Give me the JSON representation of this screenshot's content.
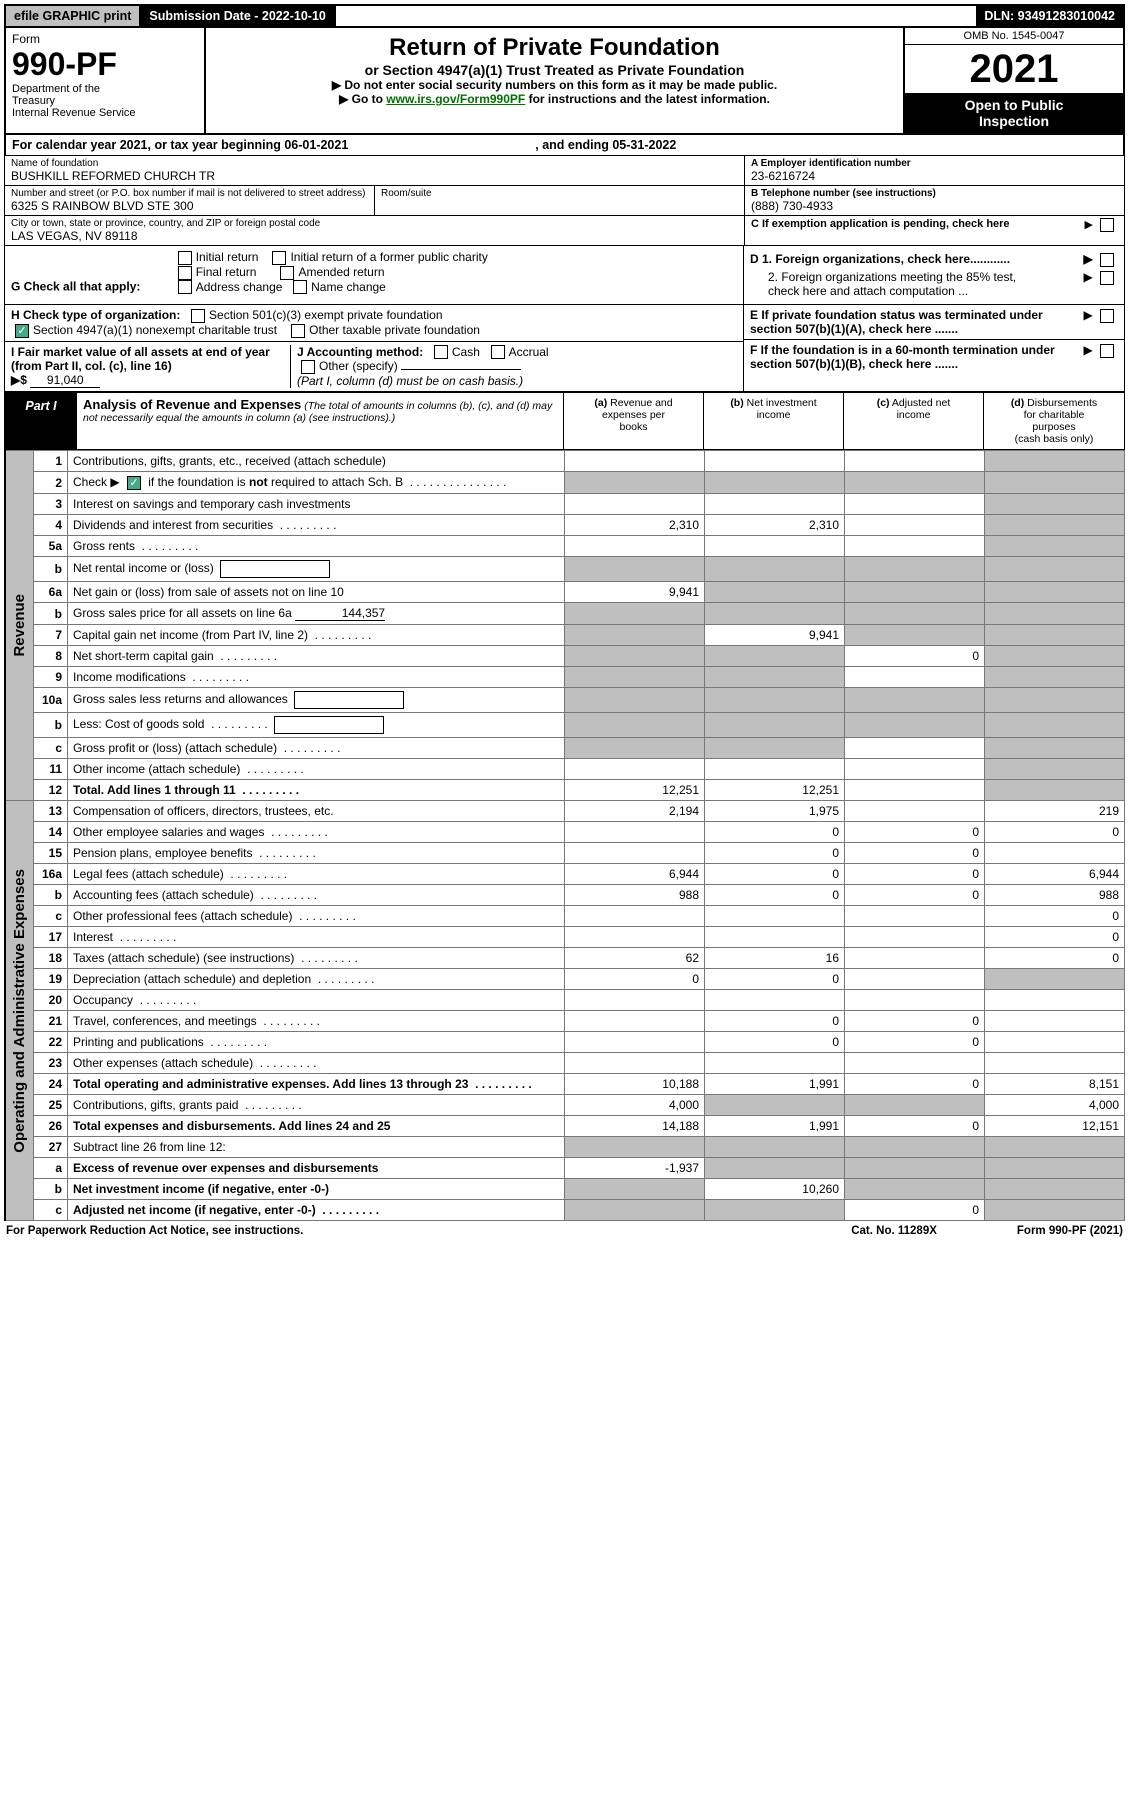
{
  "topbar": {
    "efile": "efile GRAPHIC print",
    "submission_label": "Submission Date - ",
    "submission_date": "2022-10-10",
    "dln_label": "DLN: ",
    "dln": "93491283010042"
  },
  "title": {
    "form_word": "Form",
    "form_no": "990-PF",
    "dept": "Department of the Treasury\nInternal Revenue Service",
    "main": "Return of Private Foundation",
    "sub1": "or Section 4947(a)(1) Trust Treated as Private Foundation",
    "sub2a": "▶ Do not enter social security numbers on this form as it may be made public.",
    "sub2b_pre": "▶ Go to ",
    "sub2b_link": "www.irs.gov/Form990PF",
    "sub2b_post": " for instructions and the latest information.",
    "omb": "OMB No. 1545-0047",
    "year": "2021",
    "open": "Open to Public Inspection"
  },
  "calyear": {
    "pre": "For calendar year 2021, or tax year beginning ",
    "begin": "06-01-2021",
    "mid": " , and ending ",
    "end": "05-31-2022"
  },
  "ident": {
    "name_label": "Name of foundation",
    "name": "BUSHKILL REFORMED CHURCH TR",
    "addr_label": "Number and street (or P.O. box number if mail is not delivered to street address)",
    "addr": "6325 S RAINBOW BLVD STE 300",
    "room_label": "Room/suite",
    "city_label": "City or town, state or province, country, and ZIP or foreign postal code",
    "city": "LAS VEGAS, NV  89118",
    "A_label": "A Employer identification number",
    "A": "23-6216724",
    "B_label": "B Telephone number (see instructions)",
    "B": "(888) 730-4933",
    "C_label": "C If exemption application is pending, check here"
  },
  "G": {
    "label": "G Check all that apply:",
    "opts": [
      "Initial return",
      "Initial return of a former public charity",
      "Final return",
      "Amended return",
      "Address change",
      "Name change"
    ]
  },
  "H": {
    "label": "H Check type of organization:",
    "opt1": "Section 501(c)(3) exempt private foundation",
    "opt2": "Section 4947(a)(1) nonexempt charitable trust",
    "opt3": "Other taxable private foundation"
  },
  "I": {
    "label": "I Fair market value of all assets at end of year (from Part II, col. (c), line 16)",
    "arrow": "▶$",
    "value": "91,040"
  },
  "J": {
    "label": "J Accounting method:",
    "cash": "Cash",
    "accrual": "Accrual",
    "other": "Other (specify)",
    "note": "(Part I, column (d) must be on cash basis.)"
  },
  "D": {
    "d1": "D 1. Foreign organizations, check here............",
    "d2": "2. Foreign organizations meeting the 85% test, check here and attach computation ..."
  },
  "E": "E  If private foundation status was terminated under section 507(b)(1)(A), check here .......",
  "F": "F  If the foundation is in a 60-month termination under section 507(b)(1)(B), check here .......",
  "partI": {
    "label": "Part I",
    "head": "Analysis of Revenue and Expenses",
    "note": "(The total of amounts in columns (b), (c), and (d) may not necessarily equal the amounts in column (a) (see instructions).)",
    "cols": {
      "a": "(a) Revenue and expenses per books",
      "b": "(b) Net investment income",
      "c": "(c) Adjusted net income",
      "d": "(d) Disbursements for charitable purposes (cash basis only)"
    }
  },
  "sideband": {
    "rev": "Revenue",
    "exp": "Operating and Administrative Expenses"
  },
  "rows": [
    {
      "n": "1",
      "d": "Contributions, gifts, grants, etc., received (attach schedule)",
      "a": "",
      "b": "",
      "c": "",
      "dd": "S"
    },
    {
      "n": "2",
      "d": "Check ▶ ☑ if the foundation is not required to attach Sch. B",
      "dot": true,
      "a": "S",
      "b": "S",
      "c": "S",
      "dd": "S",
      "chk": true
    },
    {
      "n": "3",
      "d": "Interest on savings and temporary cash investments",
      "a": "",
      "b": "",
      "c": "",
      "dd": "S"
    },
    {
      "n": "4",
      "d": "Dividends and interest from securities",
      "dot": true,
      "a": "2,310",
      "b": "2,310",
      "c": "",
      "dd": "S"
    },
    {
      "n": "5a",
      "d": "Gross rents",
      "dot": true,
      "a": "",
      "b": "",
      "c": "",
      "dd": "S"
    },
    {
      "n": "b",
      "d": "Net rental income or (loss)",
      "box": true,
      "a": "S",
      "b": "S",
      "c": "S",
      "dd": "S"
    },
    {
      "n": "6a",
      "d": "Net gain or (loss) from sale of assets not on line 10",
      "a": "9,941",
      "b": "S",
      "c": "S",
      "dd": "S"
    },
    {
      "n": "b",
      "d": "Gross sales price for all assets on line 6a",
      "fld": "144,357",
      "a": "S",
      "b": "S",
      "c": "S",
      "dd": "S"
    },
    {
      "n": "7",
      "d": "Capital gain net income (from Part IV, line 2)",
      "dot": true,
      "a": "S",
      "b": "9,941",
      "c": "S",
      "dd": "S"
    },
    {
      "n": "8",
      "d": "Net short-term capital gain",
      "dot": true,
      "a": "S",
      "b": "S",
      "c": "0",
      "dd": "S"
    },
    {
      "n": "9",
      "d": "Income modifications",
      "dot": true,
      "a": "S",
      "b": "S",
      "c": "",
      "dd": "S"
    },
    {
      "n": "10a",
      "d": "Gross sales less returns and allowances",
      "box": true,
      "a": "S",
      "b": "S",
      "c": "S",
      "dd": "S"
    },
    {
      "n": "b",
      "d": "Less: Cost of goods sold",
      "dot": true,
      "box": true,
      "a": "S",
      "b": "S",
      "c": "S",
      "dd": "S"
    },
    {
      "n": "c",
      "d": "Gross profit or (loss) (attach schedule)",
      "dot": true,
      "a": "S",
      "b": "S",
      "c": "",
      "dd": "S"
    },
    {
      "n": "11",
      "d": "Other income (attach schedule)",
      "dot": true,
      "a": "",
      "b": "",
      "c": "",
      "dd": "S"
    },
    {
      "n": "12",
      "d": "Total. Add lines 1 through 11",
      "dot": true,
      "bold": true,
      "a": "12,251",
      "b": "12,251",
      "c": "",
      "dd": "S"
    },
    {
      "n": "13",
      "d": "Compensation of officers, directors, trustees, etc.",
      "a": "2,194",
      "b": "1,975",
      "c": "",
      "dd": "219"
    },
    {
      "n": "14",
      "d": "Other employee salaries and wages",
      "dot": true,
      "a": "",
      "b": "0",
      "c": "0",
      "dd": "0"
    },
    {
      "n": "15",
      "d": "Pension plans, employee benefits",
      "dot": true,
      "a": "",
      "b": "0",
      "c": "0",
      "dd": ""
    },
    {
      "n": "16a",
      "d": "Legal fees (attach schedule)",
      "dot": true,
      "a": "6,944",
      "b": "0",
      "c": "0",
      "dd": "6,944"
    },
    {
      "n": "b",
      "d": "Accounting fees (attach schedule)",
      "dot": true,
      "a": "988",
      "b": "0",
      "c": "0",
      "dd": "988"
    },
    {
      "n": "c",
      "d": "Other professional fees (attach schedule)",
      "dot": true,
      "a": "",
      "b": "",
      "c": "",
      "dd": "0"
    },
    {
      "n": "17",
      "d": "Interest",
      "dot": true,
      "a": "",
      "b": "",
      "c": "",
      "dd": "0"
    },
    {
      "n": "18",
      "d": "Taxes (attach schedule) (see instructions)",
      "dot": true,
      "a": "62",
      "b": "16",
      "c": "",
      "dd": "0"
    },
    {
      "n": "19",
      "d": "Depreciation (attach schedule) and depletion",
      "dot": true,
      "a": "0",
      "b": "0",
      "c": "",
      "dd": "S"
    },
    {
      "n": "20",
      "d": "Occupancy",
      "dot": true,
      "a": "",
      "b": "",
      "c": "",
      "dd": ""
    },
    {
      "n": "21",
      "d": "Travel, conferences, and meetings",
      "dot": true,
      "a": "",
      "b": "0",
      "c": "0",
      "dd": ""
    },
    {
      "n": "22",
      "d": "Printing and publications",
      "dot": true,
      "a": "",
      "b": "0",
      "c": "0",
      "dd": ""
    },
    {
      "n": "23",
      "d": "Other expenses (attach schedule)",
      "dot": true,
      "a": "",
      "b": "",
      "c": "",
      "dd": ""
    },
    {
      "n": "24",
      "d": "Total operating and administrative expenses. Add lines 13 through 23",
      "dot": true,
      "bold": true,
      "a": "10,188",
      "b": "1,991",
      "c": "0",
      "dd": "8,151"
    },
    {
      "n": "25",
      "d": "Contributions, gifts, grants paid",
      "dot": true,
      "a": "4,000",
      "b": "S",
      "c": "S",
      "dd": "4,000"
    },
    {
      "n": "26",
      "d": "Total expenses and disbursements. Add lines 24 and 25",
      "bold": true,
      "a": "14,188",
      "b": "1,991",
      "c": "0",
      "dd": "12,151"
    },
    {
      "n": "27",
      "d": "Subtract line 26 from line 12:",
      "a": "S",
      "b": "S",
      "c": "S",
      "dd": "S"
    },
    {
      "n": "a",
      "d": "Excess of revenue over expenses and disbursements",
      "bold": true,
      "a": "-1,937",
      "b": "S",
      "c": "S",
      "dd": "S"
    },
    {
      "n": "b",
      "d": "Net investment income (if negative, enter -0-)",
      "bold": true,
      "a": "S",
      "b": "10,260",
      "c": "S",
      "dd": "S"
    },
    {
      "n": "c",
      "d": "Adjusted net income (if negative, enter -0-)",
      "dot": true,
      "bold": true,
      "a": "S",
      "b": "S",
      "c": "0",
      "dd": "S"
    }
  ],
  "footer": {
    "left": "For Paperwork Reduction Act Notice, see instructions.",
    "mid": "Cat. No. 11289X",
    "right": "Form 990-PF (2021)"
  }
}
